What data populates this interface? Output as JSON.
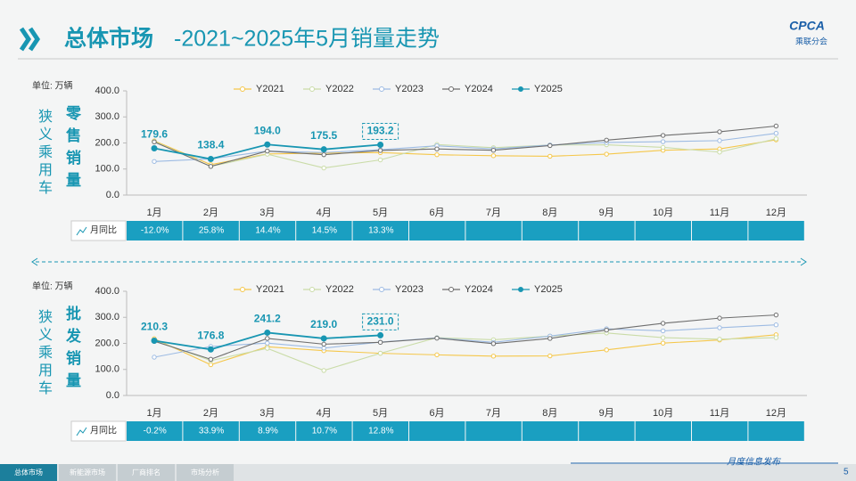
{
  "header": {
    "title_main": "总体市场",
    "title_rest": "-2021~2025年5月销量走势",
    "logo": "CPCA",
    "logo_sub": "乘联分会"
  },
  "footer": {
    "tabs": [
      "总体市场",
      "新能源市场",
      "厂商排名",
      "市场分析"
    ],
    "note": "月度信息发布",
    "page": "5"
  },
  "chart_data": [
    {
      "type": "line",
      "unit": "单位: 万辆",
      "side_label": "狭义乘用车",
      "metric": "零售销量",
      "categories": [
        "1月",
        "2月",
        "3月",
        "4月",
        "5月",
        "6月",
        "7月",
        "8月",
        "9月",
        "10月",
        "11月",
        "12月"
      ],
      "ylim": [
        0,
        400
      ],
      "yticks": [
        {
          "value": 0,
          "label": "0.0"
        },
        {
          "value": 100,
          "label": "100.0"
        },
        {
          "value": 200,
          "label": "200.0"
        },
        {
          "value": 300,
          "label": "300.0"
        },
        {
          "value": 400,
          "label": "400.0"
        }
      ],
      "grid": false,
      "legend": "top",
      "series": [
        {
          "name": "Y2021",
          "color": "#f5c74a",
          "values": [
            208,
            117,
            158,
            161,
            163,
            155,
            151,
            149,
            157,
            172,
            177,
            212
          ]
        },
        {
          "name": "Y2022",
          "color": "#cadca8",
          "values": [
            206,
            110,
            157,
            104,
            135,
            194,
            182,
            192,
            193,
            183,
            165,
            216
          ]
        },
        {
          "name": "Y2023",
          "color": "#9dbbe3",
          "values": [
            129,
            139,
            169,
            163,
            174,
            189,
            177,
            192,
            202,
            205,
            209,
            237
          ]
        },
        {
          "name": "Y2024",
          "color": "#6e6e6e",
          "values": [
            204,
            110,
            169,
            155,
            171,
            177,
            172,
            190,
            211,
            229,
            243,
            265
          ]
        },
        {
          "name": "Y2025",
          "color": "#1896b2",
          "values": [
            179.6,
            138.4,
            194.0,
            175.5,
            193.2,
            null,
            null,
            null,
            null,
            null,
            null,
            null
          ],
          "value_labels": [
            "179.6",
            "138.4",
            "194.0",
            "175.5",
            "193.2",
            null,
            null,
            null,
            null,
            null,
            null,
            null
          ]
        }
      ],
      "yoy": {
        "label": "月同比",
        "values": [
          "-12.0%",
          "25.8%",
          "14.4%",
          "14.5%",
          "13.3%"
        ]
      }
    },
    {
      "type": "line",
      "unit": "单位: 万辆",
      "side_label": "狭义乘用车",
      "metric": "批发销量",
      "categories": [
        "1月",
        "2月",
        "3月",
        "4月",
        "5月",
        "6月",
        "7月",
        "8月",
        "9月",
        "10月",
        "11月",
        "12月"
      ],
      "ylim": [
        0,
        400
      ],
      "yticks": [
        {
          "value": 0,
          "label": "0.0"
        },
        {
          "value": 100,
          "label": "100.0"
        },
        {
          "value": 200,
          "label": "200.0"
        },
        {
          "value": 300,
          "label": "300.0"
        },
        {
          "value": 400,
          "label": "400.0"
        }
      ],
      "grid": false,
      "legend": "top",
      "series": [
        {
          "name": "Y2021",
          "color": "#f5c74a",
          "values": [
            218,
            118,
            187,
            172,
            162,
            156,
            151,
            152,
            175,
            201,
            213,
            233
          ]
        },
        {
          "name": "Y2022",
          "color": "#cadca8",
          "values": [
            212,
            134,
            181,
            96,
            162,
            222,
            214,
            228,
            240,
            222,
            216,
            222
          ]
        },
        {
          "name": "Y2023",
          "color": "#9dbbe3",
          "values": [
            147,
            188,
            201,
            182,
            205,
            221,
            204,
            228,
            256,
            248,
            260,
            271
          ]
        },
        {
          "name": "Y2024",
          "color": "#6e6e6e",
          "values": [
            208,
            139,
            219,
            197,
            204,
            220,
            199,
            219,
            251,
            277,
            297,
            309
          ]
        },
        {
          "name": "Y2025",
          "color": "#1896b2",
          "values": [
            210.3,
            176.8,
            241.2,
            219.0,
            231.0,
            null,
            null,
            null,
            null,
            null,
            null,
            null
          ],
          "value_labels": [
            "210.3",
            "176.8",
            "241.2",
            "219.0",
            "231.0",
            null,
            null,
            null,
            null,
            null,
            null,
            null
          ]
        }
      ],
      "yoy": {
        "label": "月同比",
        "values": [
          "-0.2%",
          "33.9%",
          "8.9%",
          "10.7%",
          "12.8%"
        ]
      }
    }
  ]
}
